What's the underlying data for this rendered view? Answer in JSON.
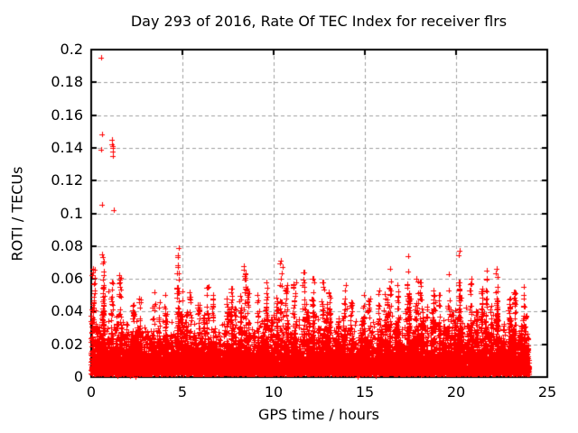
{
  "chart_data": {
    "type": "scatter",
    "title": "Day 293 of 2016, Rate Of TEC Index for receiver flrs",
    "xlabel": "GPS time / hours",
    "ylabel": "ROTI / TECUs",
    "xlim": [
      0,
      25
    ],
    "ylim": [
      0,
      0.2
    ],
    "xticks": [
      {
        "v": 0,
        "label": "0"
      },
      {
        "v": 5,
        "label": "5"
      },
      {
        "v": 10,
        "label": "10"
      },
      {
        "v": 15,
        "label": "15"
      },
      {
        "v": 20,
        "label": "20"
      },
      {
        "v": 25,
        "label": "25"
      }
    ],
    "yticks": [
      {
        "v": 0,
        "label": "0"
      },
      {
        "v": 0.02,
        "label": "0.02"
      },
      {
        "v": 0.04,
        "label": "0.04"
      },
      {
        "v": 0.06,
        "label": "0.06"
      },
      {
        "v": 0.08,
        "label": "0.08"
      },
      {
        "v": 0.1,
        "label": "0.1"
      },
      {
        "v": 0.12,
        "label": "0.12"
      },
      {
        "v": 0.14,
        "label": "0.14"
      },
      {
        "v": 0.16,
        "label": "0.16"
      },
      {
        "v": 0.18,
        "label": "0.18"
      },
      {
        "v": 0.2,
        "label": "0.2"
      }
    ],
    "grid": {
      "show": true,
      "style": "dashed",
      "color": "#a0a0a0"
    },
    "axis_color": "#000000",
    "background": "#ffffff",
    "marker": {
      "shape": "plus",
      "color": "#ff0000",
      "size": 6
    },
    "x_data_range": [
      0,
      24
    ],
    "outliers": [
      [
        0.55,
        0.195
      ],
      [
        0.57,
        0.148
      ],
      [
        0.55,
        0.139
      ],
      [
        1.12,
        0.145
      ],
      [
        1.15,
        0.142
      ],
      [
        1.18,
        0.141
      ],
      [
        1.21,
        0.14
      ],
      [
        1.17,
        0.138
      ],
      [
        1.2,
        0.135
      ],
      [
        0.57,
        0.105
      ],
      [
        1.26,
        0.102
      ]
    ],
    "band": {
      "bin_hours": 0.5,
      "x_max": 24,
      "bin_max": [
        0.066,
        0.075,
        0.058,
        0.062,
        0.044,
        0.048,
        0.052,
        0.046,
        0.05,
        0.079,
        0.052,
        0.044,
        0.055,
        0.05,
        0.048,
        0.054,
        0.068,
        0.054,
        0.05,
        0.058,
        0.071,
        0.056,
        0.058,
        0.064,
        0.06,
        0.058,
        0.052,
        0.056,
        0.046,
        0.05,
        0.048,
        0.053,
        0.066,
        0.056,
        0.074,
        0.06,
        0.058,
        0.053,
        0.05,
        0.063,
        0.077,
        0.06,
        0.054,
        0.065,
        0.066,
        0.048,
        0.052,
        0.055
      ],
      "floor": {
        "count": 9000,
        "offset": 0.0015,
        "exp_base": 0.004,
        "exp_gain": 0.035,
        "cap_frac": 0.8
      },
      "mid": {
        "per_bin": 45,
        "offset": 0.002,
        "exp_frac": 0.16,
        "cap_frac": 0.7
      },
      "plumes": {
        "per_bin": 3,
        "points_per_plume": 26,
        "sigma_x": 0.035,
        "min_frac": 0.22,
        "pow": 1.4
      },
      "seed": 293
    }
  }
}
